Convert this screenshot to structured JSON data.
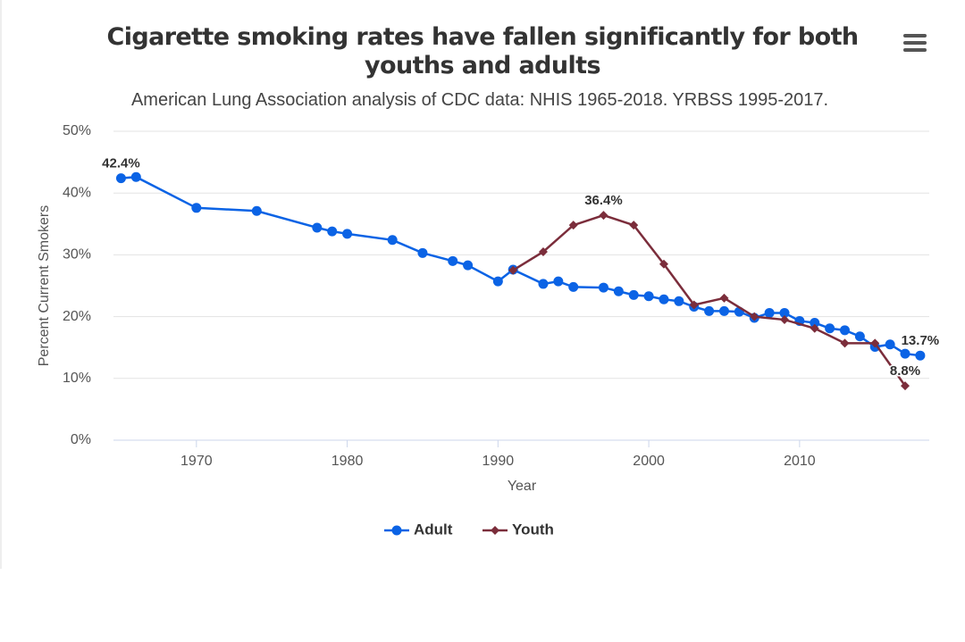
{
  "chart_data": {
    "type": "line",
    "title": "Cigarette smoking rates have fallen significantly for both youths and adults",
    "subtitle": "American Lung Association analysis of CDC data: NHIS 1965-2018. YRBSS 1995-2017.",
    "x_label": "Year",
    "y_label": "Percent Current Smokers",
    "xlim": [
      1964.5,
      2018.6
    ],
    "xticks": [
      1970,
      1980,
      1990,
      2000,
      2010
    ],
    "ylim": [
      0,
      50
    ],
    "yticks": [
      {
        "value": 0,
        "label": "0%"
      },
      {
        "value": 10,
        "label": "10%"
      },
      {
        "value": 20,
        "label": "20%"
      },
      {
        "value": 30,
        "label": "30%"
      },
      {
        "value": 40,
        "label": "40%"
      },
      {
        "value": 50,
        "label": "50%"
      }
    ],
    "grid": true,
    "legend": "bottom",
    "series": [
      {
        "name": "Adult",
        "color": "#0b63e5",
        "marker": "circle",
        "x": [
          1965,
          1966,
          1970,
          1974,
          1978,
          1979,
          1980,
          1983,
          1985,
          1987,
          1988,
          1990,
          1991,
          1993,
          1994,
          1995,
          1997,
          1998,
          1999,
          2000,
          2001,
          2002,
          2003,
          2004,
          2005,
          2006,
          2007,
          2008,
          2009,
          2010,
          2011,
          2012,
          2013,
          2014,
          2015,
          2016,
          2017,
          2018
        ],
        "values": [
          42.4,
          42.6,
          37.6,
          37.1,
          34.4,
          33.8,
          33.4,
          32.4,
          30.3,
          29.0,
          28.3,
          25.7,
          27.6,
          25.3,
          25.7,
          24.8,
          24.7,
          24.1,
          23.5,
          23.3,
          22.8,
          22.5,
          21.6,
          20.9,
          20.9,
          20.8,
          19.8,
          20.6,
          20.6,
          19.3,
          19.0,
          18.1,
          17.8,
          16.8,
          15.1,
          15.5,
          14.0,
          13.7
        ],
        "value_labels": [
          "42.4%",
          null,
          null,
          null,
          null,
          null,
          null,
          null,
          null,
          null,
          null,
          null,
          null,
          null,
          null,
          null,
          null,
          null,
          null,
          null,
          null,
          null,
          null,
          null,
          null,
          null,
          null,
          null,
          null,
          null,
          null,
          null,
          null,
          null,
          null,
          null,
          null,
          "13.7%"
        ]
      },
      {
        "name": "Youth",
        "color": "#7b2d3b",
        "marker": "diamond",
        "x": [
          1991,
          1993,
          1995,
          1997,
          1999,
          2001,
          2003,
          2005,
          2007,
          2009,
          2011,
          2013,
          2015,
          2017
        ],
        "values": [
          27.5,
          30.5,
          34.8,
          36.4,
          34.8,
          28.5,
          21.9,
          23.0,
          20.0,
          19.5,
          18.1,
          15.7,
          15.7,
          8.8
        ],
        "value_labels": [
          null,
          null,
          null,
          "36.4%",
          null,
          null,
          null,
          null,
          null,
          null,
          null,
          null,
          null,
          "8.8%"
        ]
      }
    ]
  }
}
